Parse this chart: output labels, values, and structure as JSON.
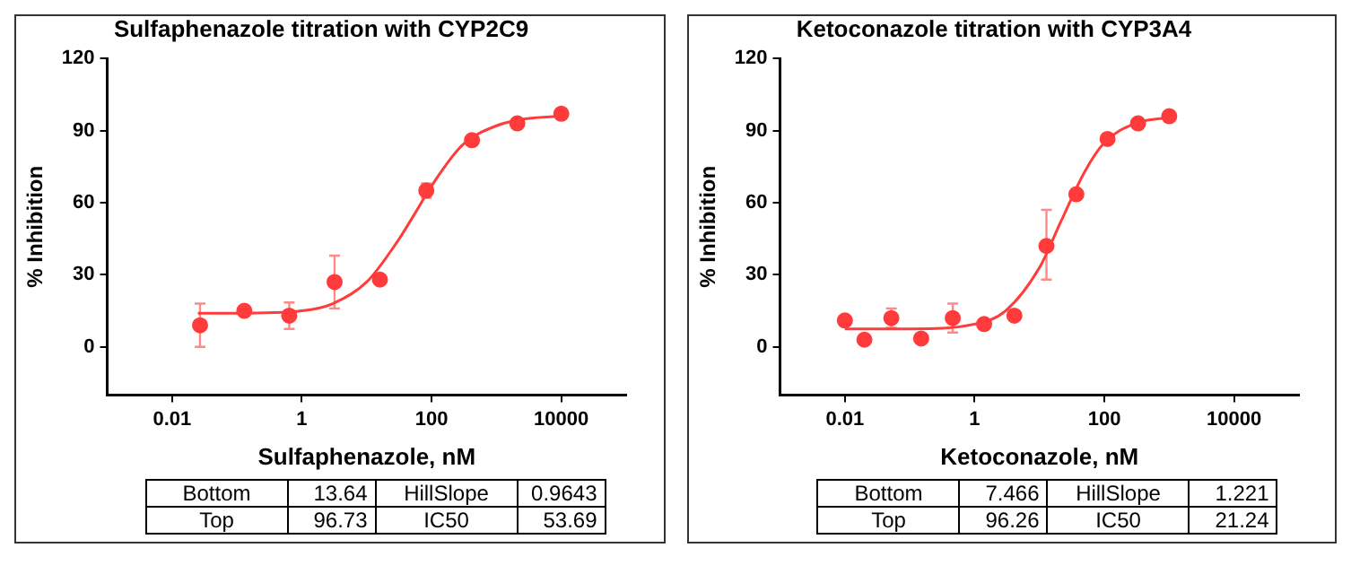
{
  "chart_data": [
    {
      "type": "scatter",
      "title": "Sulfaphenazole titration with CYP2C9",
      "xlabel": "Sulfaphenazole, nM",
      "ylabel": "% Inhibition",
      "log": "x",
      "xlim": [
        0.001,
        100000
      ],
      "xticks": [
        0.01,
        1,
        100,
        10000
      ],
      "ylim": [
        -20,
        120
      ],
      "yticks": [
        0,
        30,
        60,
        90,
        120
      ],
      "grid": false,
      "legend": false,
      "series": [
        {
          "color": "#ff3b3b",
          "marker": "circle",
          "x": [
            0.027,
            0.13,
            0.64,
            3.2,
            16,
            83,
            420,
            2100,
            10000
          ],
          "values": [
            9,
            15,
            13,
            27,
            28,
            65,
            86,
            93,
            97
          ],
          "errors": [
            9,
            null,
            5.5,
            [
              16,
              38
            ],
            null,
            3,
            2,
            null,
            2
          ]
        },
        {
          "type": "line",
          "color": "#ff3b3b",
          "marker": "none",
          "x": [
            0.025,
            0.1,
            1,
            3,
            10,
            30,
            54,
            100,
            300,
            1000,
            3000,
            10000
          ],
          "values": [
            14,
            14,
            15,
            18,
            27,
            44,
            55,
            67,
            84,
            92,
            95,
            96
          ]
        }
      ],
      "annotations": [
        "Bottom",
        "13.64",
        "HillSlope",
        "0.9643",
        "Top",
        "96.73",
        "IC50",
        "53.69"
      ]
    },
    {
      "type": "scatter",
      "title": "Ketoconazole titration with CYP3A4",
      "xlabel": "Ketoconazole, nM",
      "ylabel": "% Inhibition",
      "log": "x",
      "xlim": [
        0.001,
        100000
      ],
      "xticks": [
        0.01,
        1,
        100,
        10000
      ],
      "ylim": [
        -20,
        120
      ],
      "yticks": [
        0,
        30,
        60,
        90,
        120
      ],
      "grid": false,
      "legend": false,
      "series": [
        {
          "color": "#ff3b3b",
          "marker": "circle",
          "x": [
            0.01,
            0.02,
            0.052,
            0.15,
            0.46,
            1.4,
            4.1,
            12.8,
            37,
            112,
            330,
            1000
          ],
          "values": [
            11,
            3,
            12,
            3.5,
            12,
            9.5,
            13,
            42,
            63.5,
            86.5,
            93,
            96
          ],
          "errors": [
            null,
            null,
            4,
            null,
            [
              6,
              18
            ],
            null,
            null,
            [
              28,
              57
            ],
            null,
            null,
            null,
            null
          ]
        },
        {
          "type": "line",
          "color": "#ff3b3b",
          "marker": "none",
          "x": [
            0.01,
            0.1,
            1,
            3,
            10,
            21.24,
            50,
            100,
            300,
            1000
          ],
          "values": [
            7.5,
            7.5,
            9.5,
            15,
            33,
            52,
            73,
            85,
            93,
            95.5
          ]
        }
      ],
      "annotations": [
        "Bottom",
        "7.466",
        "HillSlope",
        "1.221",
        "Top",
        "96.26",
        "IC50",
        "21.24"
      ]
    }
  ]
}
